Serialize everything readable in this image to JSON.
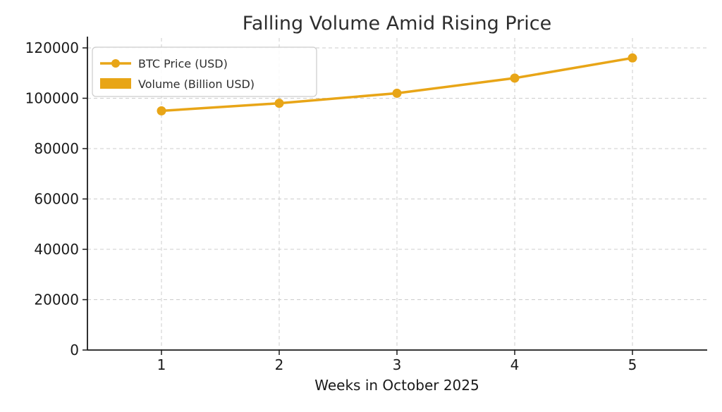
{
  "chart_data": {
    "type": "line+bar",
    "title": "Falling Volume Amid Rising Price",
    "xlabel": "Weeks in October 2025",
    "ylabel": "",
    "x": [
      1,
      2,
      3,
      4,
      5
    ],
    "series": [
      {
        "name": "BTC Price (USD)",
        "type": "line",
        "marker": "circle",
        "color": "#E8A517",
        "values": [
          95000,
          98000,
          102000,
          108000,
          116000
        ]
      },
      {
        "name": "Volume (Billion USD)",
        "type": "bar",
        "color": "#E8A517",
        "values": [
          0,
          0,
          0,
          0,
          0
        ],
        "note": "bars are rendered at the bottom axis but are not visible at this y-scale (sub-pixel heights)"
      }
    ],
    "xticks": [
      1,
      2,
      3,
      4,
      5
    ],
    "yticks": [
      0,
      20000,
      40000,
      60000,
      80000,
      100000,
      120000
    ],
    "ylim": [
      0,
      123600
    ],
    "xlim": [
      0.36,
      5.64
    ],
    "grid": {
      "visible": true,
      "style": "dashed",
      "color": "#cccccc"
    },
    "legend": {
      "position": "upper-left",
      "entries": [
        "BTC Price (USD)",
        "Volume (Billion USD)"
      ]
    }
  },
  "colors": {
    "accent": "#E8A517",
    "grid": "#cccccc",
    "spine": "#1a1a1a",
    "text": "#1a1a1a",
    "legend_border": "#cccccc",
    "background": "#ffffff"
  }
}
